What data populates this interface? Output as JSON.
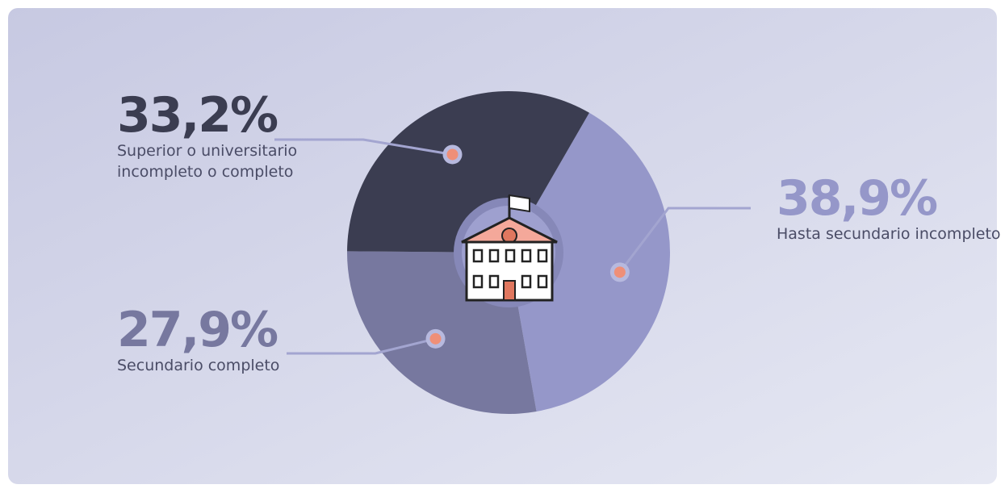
{
  "chart_data": {
    "type": "pie",
    "categories": [
      "Hasta secundario incompleto",
      "Secundario completo",
      "Superior o universitario incompleto o completo"
    ],
    "values": [
      38.9,
      27.9,
      33.2
    ],
    "value_labels": [
      "38,9%",
      "27,9%",
      "33,2%"
    ],
    "colors": [
      "#9597c9",
      "#77789f",
      "#3b3d51"
    ]
  }
}
